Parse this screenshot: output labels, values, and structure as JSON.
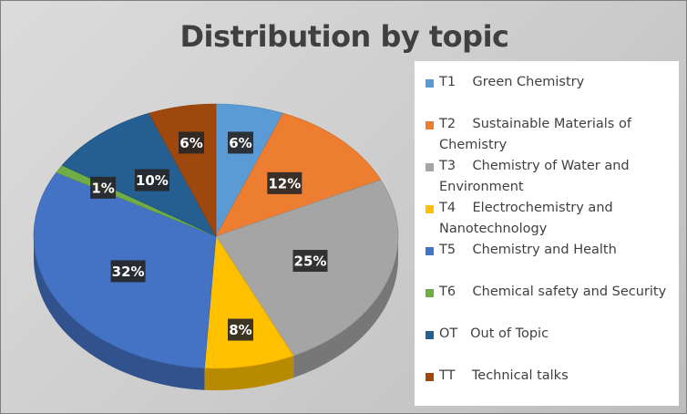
{
  "chart_data": {
    "type": "pie",
    "title": "Distribution by topic",
    "categories": [
      "T1    Green Chemistry",
      "T2    Sustainable Materials of Chemistry",
      "T3    Chemistry of Water and Environment",
      "T4    Electrochemistry and Nanotechnology",
      "T5    Chemistry and Health",
      "T6    Chemical safety and Security",
      "OT   Out of Topic",
      "TT    Technical talks"
    ],
    "values": [
      6,
      12,
      25,
      8,
      32,
      1,
      10,
      6
    ],
    "labels": [
      "6%",
      "12%",
      "25%",
      "8%",
      "32%",
      "1%",
      "10%",
      "6%"
    ],
    "colors": [
      "#5b9bd5",
      "#ed7d31",
      "#a5a5a5",
      "#ffc000",
      "#4472c4",
      "#70ad47",
      "#255e91",
      "#9e480e"
    ],
    "legend_position": "right",
    "style": "3d"
  }
}
